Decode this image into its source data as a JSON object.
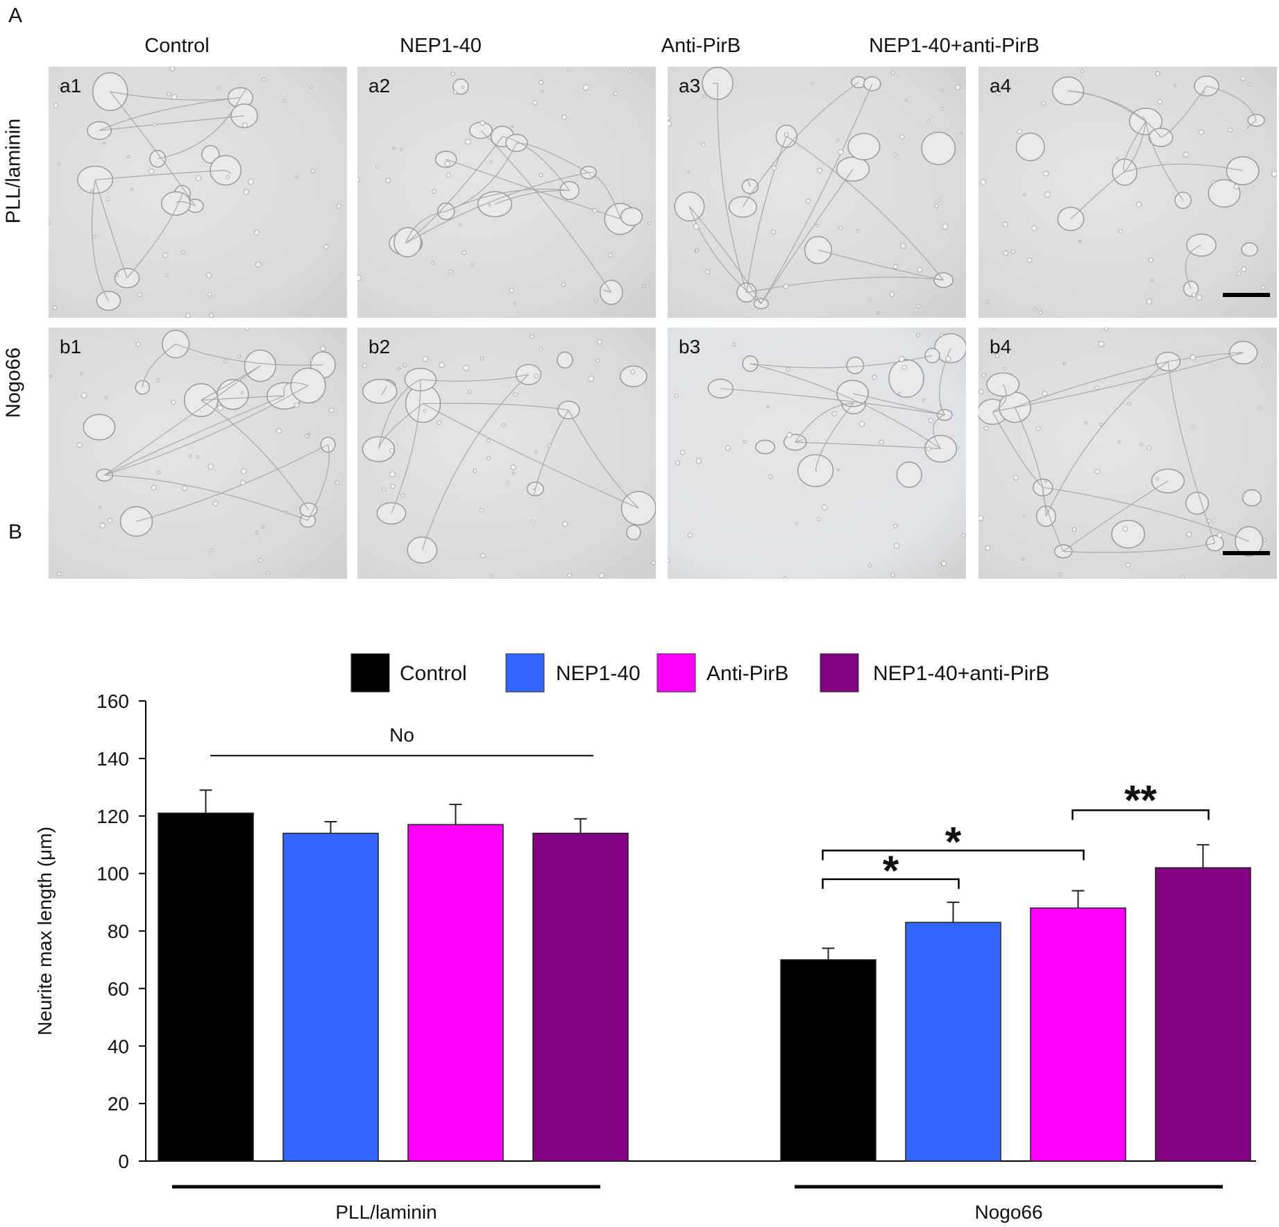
{
  "panel_a": {
    "letter": "A",
    "columns": [
      "Control",
      "NEP1-40",
      "Anti-PirB",
      "NEP1-40+anti-PirB"
    ],
    "rows": [
      "PLL/laminin",
      "Nogo66"
    ],
    "panels": [
      {
        "tag": "a1"
      },
      {
        "tag": "a2"
      },
      {
        "tag": "a3"
      },
      {
        "tag": "a4"
      },
      {
        "tag": "b1"
      },
      {
        "tag": "b2"
      },
      {
        "tag": "b3"
      },
      {
        "tag": "b4"
      }
    ]
  },
  "panel_b": {
    "letter": "B"
  },
  "colors": {
    "Control": "#000000",
    "NEP1-40": "#3366ff",
    "Anti-PirB": "#ff00ff",
    "NEP1-40+anti-PirB": "#800080"
  },
  "chart_data": {
    "type": "bar",
    "ylabel": "Neurite max length (μm)",
    "ylim": [
      0,
      160
    ],
    "yticks": [
      0,
      20,
      40,
      60,
      80,
      100,
      120,
      140,
      160
    ],
    "grid": false,
    "legend_placement": "top",
    "groups": [
      "PLL/laminin",
      "Nogo66"
    ],
    "series": [
      {
        "name": "Control",
        "values": [
          121,
          70
        ],
        "errors": [
          8,
          4
        ]
      },
      {
        "name": "NEP1-40",
        "values": [
          114,
          83
        ],
        "errors": [
          4,
          7
        ]
      },
      {
        "name": "Anti-PirB",
        "values": [
          117,
          88
        ],
        "errors": [
          7,
          6
        ]
      },
      {
        "name": "NEP1-40+anti-PirB",
        "values": [
          114,
          102
        ],
        "errors": [
          5,
          8
        ]
      }
    ],
    "annotations": [
      {
        "group": "PLL/laminin",
        "label": "No"
      },
      {
        "group": "Nogo66",
        "from": "Control",
        "to": "NEP1-40",
        "label": "*"
      },
      {
        "group": "Nogo66",
        "from": "Control",
        "to": "Anti-PirB",
        "label": "*"
      },
      {
        "group": "Nogo66",
        "from": "Anti-PirB",
        "to": "NEP1-40+anti-PirB",
        "label": "**"
      }
    ]
  }
}
